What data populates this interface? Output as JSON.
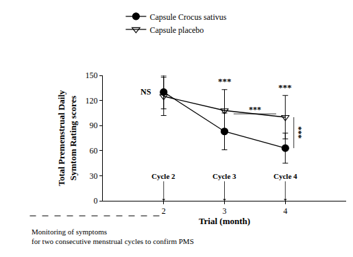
{
  "chart_data": {
    "type": "line",
    "xlabel": "Trial (month)",
    "ylabel": [
      "Total Premenstrual Daily",
      "Symtom Rating scores"
    ],
    "x": [
      2,
      3,
      4
    ],
    "series": [
      {
        "name": "Capsule Crocus sativus",
        "color": "#000000",
        "marker": "circle",
        "values": [
          130,
          83,
          63
        ],
        "error": [
          20,
          22,
          18
        ]
      },
      {
        "name": "Capsule placebo",
        "color": "#000000",
        "marker": "triangle-down-open",
        "values": [
          125,
          108,
          100
        ],
        "error": [
          23,
          25,
          26
        ]
      }
    ],
    "xlim": [
      1,
      5
    ],
    "xticks": [
      2,
      3,
      4
    ],
    "ylim": [
      0,
      150
    ],
    "yticks": [
      0,
      30,
      60,
      90,
      120,
      150
    ],
    "grid": false,
    "legend": "top left",
    "cycle_labels": [
      "Cycle 2",
      "Cycle 3",
      "Cycle 4"
    ],
    "significance": [
      {
        "x": 2,
        "label": "NS"
      },
      {
        "x": 3,
        "label": "***"
      },
      {
        "x": 4,
        "label": "***"
      }
    ],
    "placebo_cycle3_vs_cycle4": "***",
    "crocus_vs_placebo_cycle4": "***",
    "note": [
      "Monitoring of symptoms",
      "for two consecutive menstrual cycles to confirm PMS"
    ]
  }
}
